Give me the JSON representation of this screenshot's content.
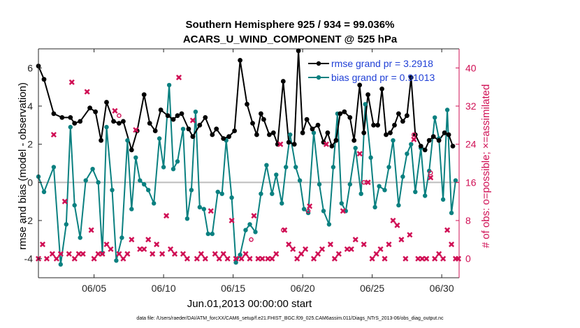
{
  "chart_data": {
    "type": "line",
    "title_line1": "Southern Hemisphere 925 / 934 = 99.036%",
    "title_line2": "ACARS_U_WIND_COMPONENT @ 525 hPa",
    "xlabel": "Jun.01,2013 00:00:00 start",
    "ylabel_left": "rmse and bias (model - observation)",
    "ylabel_right": "# of obs: o=possible; ×=assimilated",
    "footer": "data file: /Users/raeder/DAI/ATM_forcXX/CAM6_setup/f.e21.FHIST_BGC.f09_025.CAM6assim.011/Diags_NTrS_2013-06/obs_diag_output.nc",
    "xlim": [
      1,
      31.25
    ],
    "ylim_left": [
      -5,
      7
    ],
    "ylim_right": [
      -4,
      44
    ],
    "x_ticks": [
      5,
      10,
      15,
      20,
      25,
      30
    ],
    "x_tick_labels": [
      "06/05",
      "06/10",
      "06/15",
      "06/20",
      "06/25",
      "06/30"
    ],
    "y_ticks_left": [
      -4,
      -2,
      0,
      2,
      4,
      6
    ],
    "y_tick_labels_left": [
      "-4",
      "-2",
      "0",
      "2",
      "4",
      "6"
    ],
    "y_ticks_right": [
      0,
      8,
      16,
      24,
      32,
      40
    ],
    "y_tick_labels_right": [
      "0",
      "8",
      "16",
      "24",
      "32",
      "40"
    ],
    "legend": {
      "location": "top-right",
      "entries": [
        "rmse grand pr = 3.2918",
        "bias grand pr = 0.91013"
      ]
    },
    "colors": {
      "rmse": "#000000",
      "bias": "#0a8080",
      "obs": "#d01055",
      "zero_line": "#bdbdbd",
      "legend_text": "#1f3fd6"
    },
    "series": [
      {
        "name": "rmse",
        "points": [
          [
            1.0,
            6.1
          ],
          [
            1.4,
            5.4
          ],
          [
            2.1,
            3.6
          ],
          [
            2.7,
            3.4
          ],
          [
            3.3,
            3.4
          ],
          [
            3.6,
            3.1
          ],
          [
            4.0,
            3.2
          ],
          [
            4.7,
            3.9
          ],
          [
            5.1,
            3.7
          ],
          [
            5.5,
            2.2
          ],
          [
            5.9,
            4.2
          ],
          [
            6.4,
            3.2
          ],
          [
            6.8,
            3.1
          ],
          [
            7.1,
            3.2
          ],
          [
            7.7,
            1.7
          ],
          [
            8.1,
            2.7
          ],
          [
            8.6,
            4.6
          ],
          [
            9.0,
            3.1
          ],
          [
            9.4,
            2.7
          ],
          [
            9.8,
            3.8
          ],
          [
            10.3,
            3.5
          ],
          [
            10.7,
            3.3
          ],
          [
            11.0,
            3.5
          ],
          [
            11.3,
            3.6
          ],
          [
            11.8,
            2.8
          ],
          [
            12.1,
            2.4
          ],
          [
            12.6,
            3.0
          ],
          [
            13.0,
            3.4
          ],
          [
            13.5,
            2.5
          ],
          [
            13.8,
            2.8
          ],
          [
            14.3,
            2.3
          ],
          [
            14.7,
            2.4
          ],
          [
            15.1,
            2.7
          ],
          [
            15.5,
            6.4
          ],
          [
            16.0,
            4.1
          ],
          [
            16.4,
            3.1
          ],
          [
            16.7,
            2.5
          ],
          [
            17.0,
            3.6
          ],
          [
            17.2,
            3.3
          ],
          [
            17.6,
            2.5
          ],
          [
            17.9,
            2.6
          ],
          [
            18.2,
            2.0
          ],
          [
            18.6,
            5.3
          ],
          [
            19.0,
            2.1
          ],
          [
            19.4,
            2.0
          ],
          [
            19.7,
            6.9
          ],
          [
            20.0,
            2.6
          ],
          [
            20.3,
            3.3
          ],
          [
            20.7,
            2.8
          ],
          [
            21.1,
            3.0
          ],
          [
            21.5,
            2.1
          ],
          [
            21.8,
            2.6
          ],
          [
            22.1,
            1.9
          ],
          [
            22.4,
            2.2
          ],
          [
            22.7,
            3.6
          ],
          [
            23.0,
            3.7
          ],
          [
            23.4,
            3.4
          ],
          [
            23.7,
            2.2
          ],
          [
            24.1,
            5.1
          ],
          [
            24.4,
            2.6
          ],
          [
            24.7,
            4.6
          ],
          [
            25.1,
            3.0
          ],
          [
            25.4,
            3.0
          ],
          [
            25.7,
            4.9
          ],
          [
            26.0,
            2.5
          ],
          [
            26.3,
            2.6
          ],
          [
            26.6,
            3.0
          ],
          [
            26.9,
            3.6
          ],
          [
            27.2,
            3.2
          ],
          [
            27.5,
            3.5
          ],
          [
            27.8,
            5.5
          ],
          [
            28.1,
            2.5
          ],
          [
            28.5,
            1.9
          ],
          [
            28.8,
            1.7
          ],
          [
            29.1,
            2.2
          ],
          [
            29.4,
            2.4
          ],
          [
            29.8,
            2.2
          ],
          [
            30.2,
            2.6
          ],
          [
            30.5,
            2.5
          ],
          [
            30.8,
            1.9
          ]
        ]
      },
      {
        "name": "bias",
        "points": [
          [
            1.0,
            0.3
          ],
          [
            1.4,
            -0.5
          ],
          [
            2.1,
            0.8
          ],
          [
            2.6,
            -4.3
          ],
          [
            3.0,
            -2.2
          ],
          [
            3.3,
            2.9
          ],
          [
            3.6,
            -1.2
          ],
          [
            4.0,
            -2.9
          ],
          [
            4.4,
            0.1
          ],
          [
            4.9,
            0.7
          ],
          [
            5.3,
            0.0
          ],
          [
            5.6,
            -3.7
          ],
          [
            5.9,
            2.9
          ],
          [
            6.3,
            -0.4
          ],
          [
            6.6,
            -4.1
          ],
          [
            7.0,
            -2.9
          ],
          [
            7.4,
            2.2
          ],
          [
            7.7,
            -1.4
          ],
          [
            8.0,
            1.3
          ],
          [
            8.3,
            0.1
          ],
          [
            8.6,
            -0.1
          ],
          [
            8.9,
            -0.4
          ],
          [
            9.3,
            -1.1
          ],
          [
            9.7,
            2.3
          ],
          [
            10.0,
            0.8
          ],
          [
            10.4,
            5.1
          ],
          [
            10.7,
            0.7
          ],
          [
            11.0,
            1.1
          ],
          [
            11.4,
            2.8
          ],
          [
            11.7,
            -1.9
          ],
          [
            12.0,
            -0.4
          ],
          [
            12.3,
            3.7
          ],
          [
            12.6,
            -1.3
          ],
          [
            12.9,
            -1.4
          ],
          [
            13.2,
            -2.7
          ],
          [
            13.5,
            -2.7
          ],
          [
            13.9,
            -0.5
          ],
          [
            14.2,
            -0.6
          ],
          [
            14.5,
            2.2
          ],
          [
            14.9,
            -0.8
          ],
          [
            15.2,
            -4.2
          ],
          [
            15.5,
            -3.8
          ],
          [
            15.9,
            -2.5
          ],
          [
            16.2,
            -2.2
          ],
          [
            16.6,
            -2.6
          ],
          [
            17.0,
            -0.6
          ],
          [
            17.4,
            0.9
          ],
          [
            17.8,
            -0.6
          ],
          [
            18.1,
            0.4
          ],
          [
            18.5,
            -1.1
          ],
          [
            18.8,
            0.8
          ],
          [
            19.1,
            2.5
          ],
          [
            19.5,
            0.8
          ],
          [
            19.8,
            0.1
          ],
          [
            20.1,
            -1.4
          ],
          [
            20.4,
            -1.6
          ],
          [
            20.8,
            2.6
          ],
          [
            21.2,
            -0.1
          ],
          [
            21.5,
            -1.5
          ],
          [
            21.9,
            -2.2
          ],
          [
            22.2,
            0.8
          ],
          [
            22.5,
            3.6
          ],
          [
            22.8,
            -1.1
          ],
          [
            23.1,
            -1.5
          ],
          [
            23.4,
            -0.1
          ],
          [
            23.8,
            1.8
          ],
          [
            24.2,
            -0.6
          ],
          [
            24.5,
            4.1
          ],
          [
            24.9,
            1.3
          ],
          [
            25.2,
            -1.3
          ],
          [
            25.5,
            -0.2
          ],
          [
            25.9,
            -0.4
          ],
          [
            26.2,
            0.8
          ],
          [
            26.5,
            2.2
          ],
          [
            26.9,
            -1.2
          ],
          [
            27.2,
            0.3
          ],
          [
            27.5,
            1.5
          ],
          [
            27.8,
            2.0
          ],
          [
            28.1,
            -0.5
          ],
          [
            28.5,
            1.8
          ],
          [
            28.8,
            -0.7
          ],
          [
            29.1,
            0.6
          ],
          [
            29.5,
            3.4
          ],
          [
            29.8,
            2.3
          ],
          [
            30.1,
            -0.9
          ],
          [
            30.4,
            3.8
          ],
          [
            30.7,
            -1.6
          ],
          [
            31.0,
            0.1
          ]
        ]
      },
      {
        "name": "obs_assimilated",
        "axis": "right",
        "points": [
          [
            1.0,
            0
          ],
          [
            1.3,
            3
          ],
          [
            1.6,
            0
          ],
          [
            2.0,
            1
          ],
          [
            2.1,
            26
          ],
          [
            2.3,
            0
          ],
          [
            2.6,
            1
          ],
          [
            2.9,
            12
          ],
          [
            3.2,
            1
          ],
          [
            3.4,
            37
          ],
          [
            3.6,
            0
          ],
          [
            3.9,
            1
          ],
          [
            4.2,
            1
          ],
          [
            4.5,
            35
          ],
          [
            4.8,
            6
          ],
          [
            5.0,
            0
          ],
          [
            5.3,
            1
          ],
          [
            5.6,
            1
          ],
          [
            5.9,
            3
          ],
          [
            6.2,
            2
          ],
          [
            6.5,
            31
          ],
          [
            6.8,
            1
          ],
          [
            7.1,
            0
          ],
          [
            7.4,
            1
          ],
          [
            7.7,
            4
          ],
          [
            8.0,
            27
          ],
          [
            8.3,
            2
          ],
          [
            8.6,
            2
          ],
          [
            8.9,
            4
          ],
          [
            9.2,
            1
          ],
          [
            9.5,
            3
          ],
          [
            9.9,
            1
          ],
          [
            10.2,
            9
          ],
          [
            10.5,
            2
          ],
          [
            10.8,
            1
          ],
          [
            11.1,
            38
          ],
          [
            11.4,
            1
          ],
          [
            11.7,
            0
          ],
          [
            12.1,
            29
          ],
          [
            12.4,
            0
          ],
          [
            12.7,
            1
          ],
          [
            13.0,
            0
          ],
          [
            13.4,
            10
          ],
          [
            13.7,
            1
          ],
          [
            14.0,
            0
          ],
          [
            14.3,
            1
          ],
          [
            14.6,
            0
          ],
          [
            14.9,
            8
          ],
          [
            15.2,
            0
          ],
          [
            15.6,
            0
          ],
          [
            15.9,
            1
          ],
          [
            16.2,
            0
          ],
          [
            16.5,
            9
          ],
          [
            16.8,
            0
          ],
          [
            17.1,
            0
          ],
          [
            17.5,
            0
          ],
          [
            17.8,
            0
          ],
          [
            18.1,
            1
          ],
          [
            18.4,
            24
          ],
          [
            18.7,
            6
          ],
          [
            19.0,
            3
          ],
          [
            19.3,
            2
          ],
          [
            19.6,
            0
          ],
          [
            19.9,
            1
          ],
          [
            20.2,
            2
          ],
          [
            20.5,
            11
          ],
          [
            20.8,
            0
          ],
          [
            21.1,
            1
          ],
          [
            21.4,
            2
          ],
          [
            21.7,
            24
          ],
          [
            22.0,
            3
          ],
          [
            22.3,
            0
          ],
          [
            22.6,
            1
          ],
          [
            22.9,
            10
          ],
          [
            23.2,
            2
          ],
          [
            23.5,
            2
          ],
          [
            23.8,
            4
          ],
          [
            24.1,
            22
          ],
          [
            24.4,
            3
          ],
          [
            24.7,
            16
          ],
          [
            25.0,
            0
          ],
          [
            25.3,
            1
          ],
          [
            25.6,
            2
          ],
          [
            25.9,
            0
          ],
          [
            26.2,
            3
          ],
          [
            26.5,
            8
          ],
          [
            26.8,
            7
          ],
          [
            27.1,
            4
          ],
          [
            27.4,
            0
          ],
          [
            27.7,
            5
          ],
          [
            28.0,
            25
          ],
          [
            28.3,
            0
          ],
          [
            28.6,
            0
          ],
          [
            28.9,
            0
          ],
          [
            29.2,
            17
          ],
          [
            29.5,
            0
          ],
          [
            29.8,
            1
          ],
          [
            30.1,
            0
          ],
          [
            30.4,
            6
          ],
          [
            30.7,
            3
          ],
          [
            31.0,
            0
          ],
          [
            31.2,
            0
          ]
        ]
      },
      {
        "name": "obs_possible",
        "axis": "right",
        "points": [
          [
            6.8,
            30
          ],
          [
            16.3,
            4
          ],
          [
            18.6,
            6
          ],
          [
            20.4,
            10
          ],
          [
            24.4,
            16
          ],
          [
            28.0,
            26
          ],
          [
            29.2,
            18
          ]
        ]
      }
    ]
  }
}
